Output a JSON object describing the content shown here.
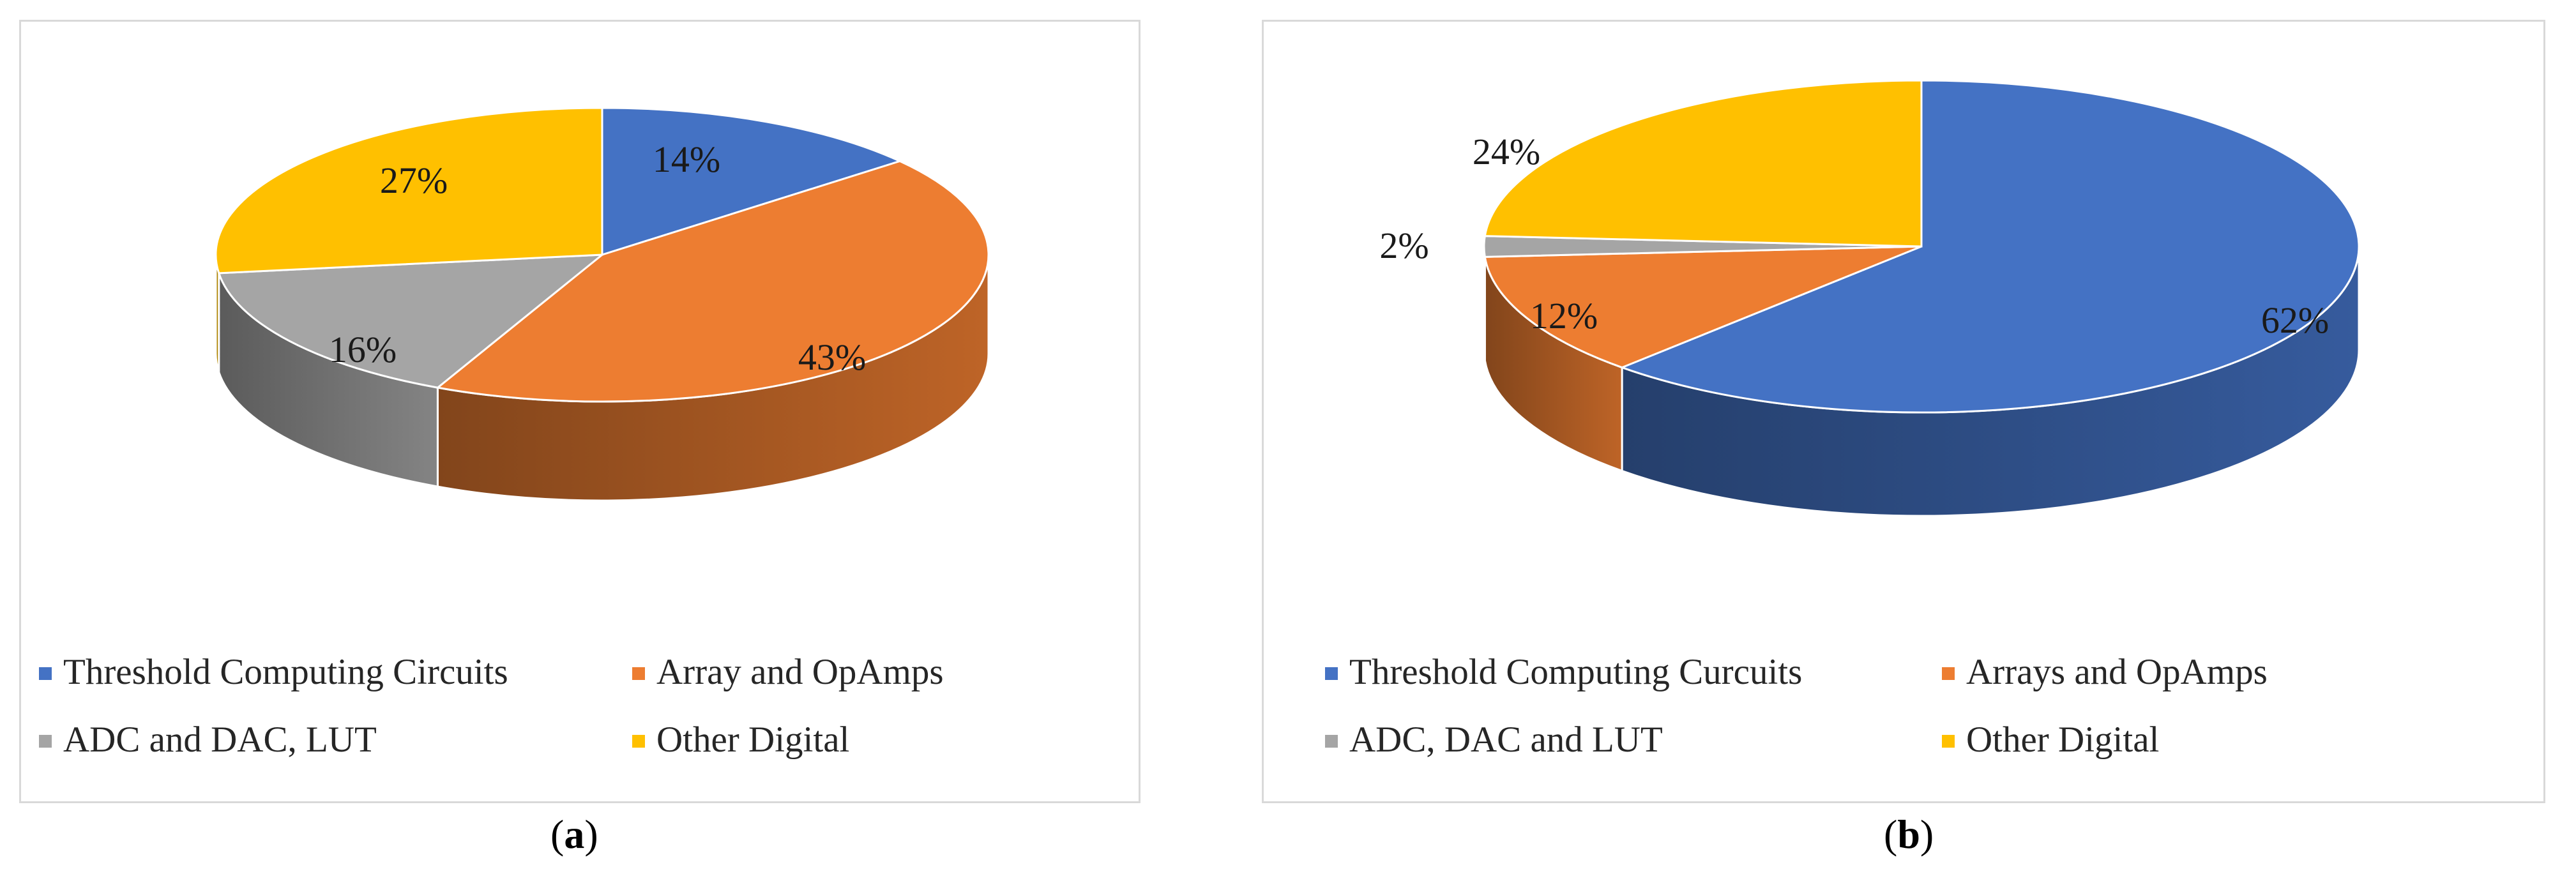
{
  "chart_data": [
    {
      "type": "pie",
      "style": "3d",
      "categories": [
        "Threshold Computing Circuits",
        "Array and OpAmps",
        "ADC and DAC, LUT",
        "Other Digital"
      ],
      "values": [
        14,
        43,
        16,
        27
      ],
      "value_labels": [
        "14%",
        "43%",
        "16%",
        "27%"
      ],
      "colors": [
        "#4472c4",
        "#ed7d31",
        "#a5a5a5",
        "#ffc000"
      ],
      "legend_position": "bottom",
      "caption": {
        "open": "(",
        "letter": "a",
        "close": ")"
      }
    },
    {
      "type": "pie",
      "style": "3d",
      "categories": [
        "Threshold Computing Curcuits",
        "Arrays and OpAmps",
        "ADC, DAC and LUT",
        "Other Digital"
      ],
      "values": [
        62,
        12,
        2,
        24
      ],
      "value_labels": [
        "62%",
        "12%",
        "2%",
        "24%"
      ],
      "colors": [
        "#4472c4",
        "#ed7d31",
        "#a5a5a5",
        "#ffc000"
      ],
      "legend_position": "bottom",
      "caption": {
        "open": "(",
        "letter": "b",
        "close": ")"
      }
    }
  ]
}
